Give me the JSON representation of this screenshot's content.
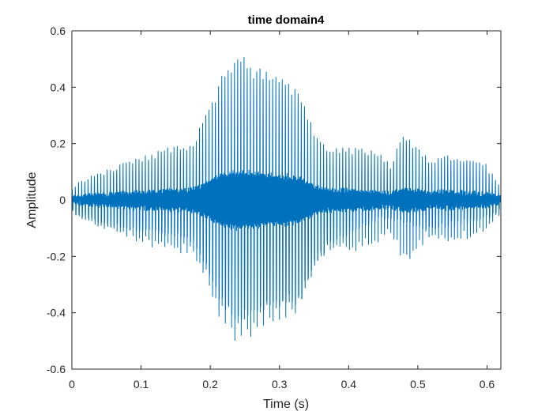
{
  "chart_data": {
    "type": "line",
    "title": "time domain4",
    "xlabel": "Time (s)",
    "ylabel": "Amplitude",
    "xlim": [
      0,
      0.62
    ],
    "ylim": [
      -0.6,
      0.6
    ],
    "xticks": [
      0,
      0.1,
      0.2,
      0.3,
      0.4,
      0.5,
      0.6
    ],
    "xtick_labels": [
      "0",
      "0.1",
      "0.2",
      "0.3",
      "0.4",
      "0.5",
      "0.6"
    ],
    "yticks": [
      0.6,
      0.4,
      0.2,
      0,
      -0.2,
      -0.4,
      -0.6
    ],
    "ytick_labels": [
      "0.6",
      "0.4",
      "0.2",
      "0",
      "-0.2",
      "-0.4",
      "-0.6"
    ],
    "grid": false,
    "line_color": "#0072BD",
    "series": [
      {
        "envelope_x": [
          0.0,
          0.02,
          0.05,
          0.08,
          0.11,
          0.14,
          0.165,
          0.18,
          0.2,
          0.215,
          0.235,
          0.25,
          0.27,
          0.29,
          0.31,
          0.33,
          0.35,
          0.37,
          0.4,
          0.42,
          0.44,
          0.46,
          0.48,
          0.5,
          0.52,
          0.54,
          0.56,
          0.58,
          0.6,
          0.62
        ],
        "envelope_upper": [
          0.04,
          0.07,
          0.1,
          0.13,
          0.16,
          0.18,
          0.19,
          0.22,
          0.34,
          0.43,
          0.5,
          0.5,
          0.46,
          0.44,
          0.43,
          0.38,
          0.24,
          0.18,
          0.18,
          0.18,
          0.17,
          0.12,
          0.24,
          0.18,
          0.13,
          0.16,
          0.15,
          0.14,
          0.12,
          0.04
        ],
        "envelope_lower": [
          -0.04,
          -0.07,
          -0.09,
          -0.1,
          -0.11,
          -0.12,
          -0.13,
          -0.16,
          -0.27,
          -0.36,
          -0.42,
          -0.41,
          -0.39,
          -0.37,
          -0.37,
          -0.36,
          -0.24,
          -0.16,
          -0.12,
          -0.09,
          -0.07,
          -0.07,
          -0.08,
          -0.09,
          -0.1,
          -0.09,
          -0.08,
          -0.07,
          -0.06,
          -0.03
        ]
      }
    ]
  }
}
